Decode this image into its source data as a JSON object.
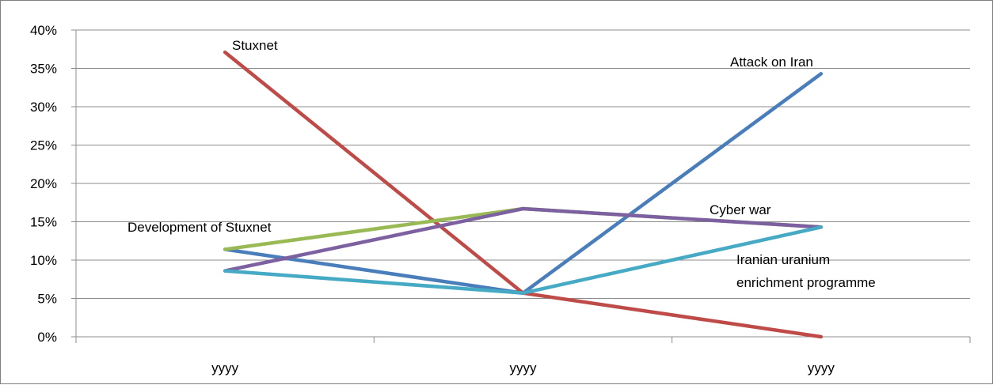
{
  "chart_data": {
    "type": "line",
    "categories": [
      "yyyy",
      "yyyy",
      "yyyy"
    ],
    "ylim": [
      0,
      0.4
    ],
    "yticks": [
      "0%",
      "5%",
      "10%",
      "15%",
      "20%",
      "25%",
      "30%",
      "35%",
      "40%"
    ],
    "grid": true,
    "legend": "none (series labelled inline)",
    "series": [
      {
        "name": "Attack on Iran",
        "color": "#4a7ebb",
        "values": [
          0.114,
          0.057,
          0.343
        ]
      },
      {
        "name": "Stuxnet",
        "color": "#be4b48",
        "values": [
          0.371,
          0.057,
          0.0
        ]
      },
      {
        "name": "Development of Stuxnet",
        "color": "#98b954",
        "values": [
          0.114,
          0.167,
          0.143
        ]
      },
      {
        "name": "Cyber war",
        "color": "#7d60a0",
        "values": [
          0.086,
          0.167,
          0.143
        ]
      },
      {
        "name": "Iranian uranium enrichment programme",
        "color": "#46aac5",
        "values": [
          0.086,
          0.057,
          0.143
        ]
      }
    ],
    "labels": {
      "attack": "Attack on Iran",
      "stuxnet": "Stuxnet",
      "development": "Development of Stuxnet",
      "cyber": "Cyber war",
      "uranium_1": "Iranian uranium",
      "uranium_2": "enrichment programme"
    }
  }
}
